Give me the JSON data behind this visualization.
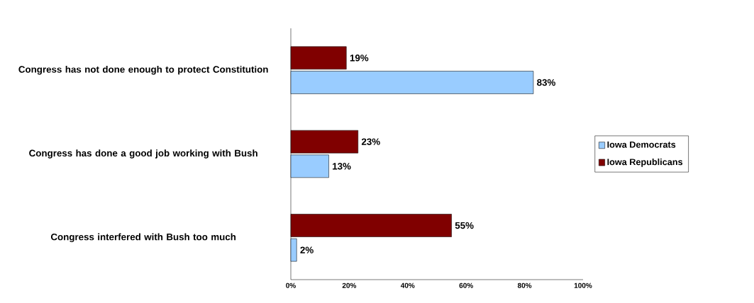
{
  "chart_data": {
    "type": "bar",
    "orientation": "horizontal",
    "categories": [
      "Congress has not done enough to protect Constitution",
      "Congress has done a good job working with Bush",
      "Congress interfered with Bush too much"
    ],
    "series": [
      {
        "name": "Iowa Democrats",
        "color": "#99ccff",
        "values": [
          83,
          13,
          2
        ],
        "value_labels": [
          "83%",
          "13%",
          "2%"
        ]
      },
      {
        "name": "Iowa Republicans",
        "color": "#800000",
        "values": [
          19,
          23,
          55
        ],
        "value_labels": [
          "19%",
          "23%",
          "55%"
        ]
      }
    ],
    "xlim": [
      0,
      100
    ],
    "xticks": [
      {
        "value": 0,
        "label": "0%"
      },
      {
        "value": 20,
        "label": "20%"
      },
      {
        "value": 40,
        "label": "40%"
      },
      {
        "value": 60,
        "label": "60%"
      },
      {
        "value": 80,
        "label": "80%"
      },
      {
        "value": 100,
        "label": "100%"
      }
    ],
    "grid": false,
    "legend": "right"
  }
}
